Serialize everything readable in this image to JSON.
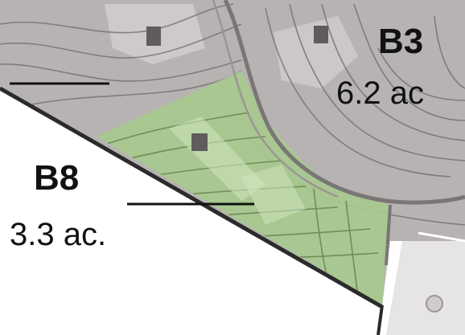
{
  "parcels": [
    {
      "code": "B3",
      "area": "6.2 ac",
      "fill": "#b0acac"
    },
    {
      "code": "B8",
      "area": "3.3 ac.",
      "fill": "#a7c98d",
      "highlighted": true
    }
  ],
  "colors": {
    "terrain": "#b7b3b3",
    "highlight": "#a7c98d",
    "contour": "#6d6a6a",
    "road": "#7a7676",
    "building": "#5f5c5c",
    "label_text": "#111111",
    "leader_line": "#111111"
  }
}
